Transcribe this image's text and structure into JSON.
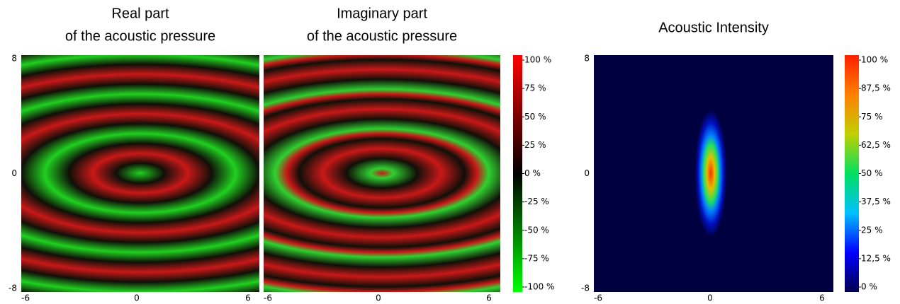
{
  "chart_data": [
    {
      "type": "heatmap",
      "title": [
        "Real part",
        "of the acoustic pressure"
      ],
      "xlim": [
        -6,
        6
      ],
      "xticks": [
        -6,
        0,
        6
      ],
      "ylim": [
        -8,
        8
      ],
      "yticks": [
        -8,
        0,
        8
      ]
    },
    {
      "type": "heatmap",
      "title": [
        "Imaginary part",
        "of the acoustic pressure"
      ],
      "xlim": [
        -6,
        6
      ],
      "xticks": [
        -6,
        0,
        6
      ],
      "ylim": [
        -8,
        8
      ],
      "colorbar": {
        "clim": [
          -100,
          100
        ],
        "colors": [
          "#00ff00",
          "#000000",
          "#ff0000"
        ],
        "ticks": [
          {
            "value": 100,
            "label": "100 %"
          },
          {
            "value": 75,
            "label": "75 %"
          },
          {
            "value": 50,
            "label": "50 %"
          },
          {
            "value": 25,
            "label": "25 %"
          },
          {
            "value": 0,
            "label": "0 %"
          },
          {
            "value": -25,
            "label": "-25 %"
          },
          {
            "value": -50,
            "label": "-50 %"
          },
          {
            "value": -75,
            "label": "-75 %"
          },
          {
            "value": -100,
            "label": "-100 %"
          }
        ]
      }
    },
    {
      "type": "heatmap",
      "title": [
        "Acoustic Intensity"
      ],
      "xlim": [
        -6,
        6
      ],
      "xticks": [
        -6,
        0,
        6
      ],
      "ylim": [
        -8,
        8
      ],
      "yticks": [
        -8,
        0,
        8
      ],
      "colorbar": {
        "clim": [
          0,
          100
        ],
        "colors": [
          "#000050",
          "#0000ff",
          "#00c0ff",
          "#00e060",
          "#c0d000",
          "#ff8000",
          "#ff2000"
        ],
        "ticks": [
          {
            "value": 100,
            "label": "100 %"
          },
          {
            "value": 87.5,
            "label": "87,5 %"
          },
          {
            "value": 75,
            "label": "75 %"
          },
          {
            "value": 62.5,
            "label": "62,5 %"
          },
          {
            "value": 50,
            "label": "50 %"
          },
          {
            "value": 37.5,
            "label": "37,5 %"
          },
          {
            "value": 25,
            "label": "25 %"
          },
          {
            "value": 12.5,
            "label": "12,5 %"
          },
          {
            "value": 0,
            "label": "0 %"
          }
        ]
      }
    }
  ]
}
